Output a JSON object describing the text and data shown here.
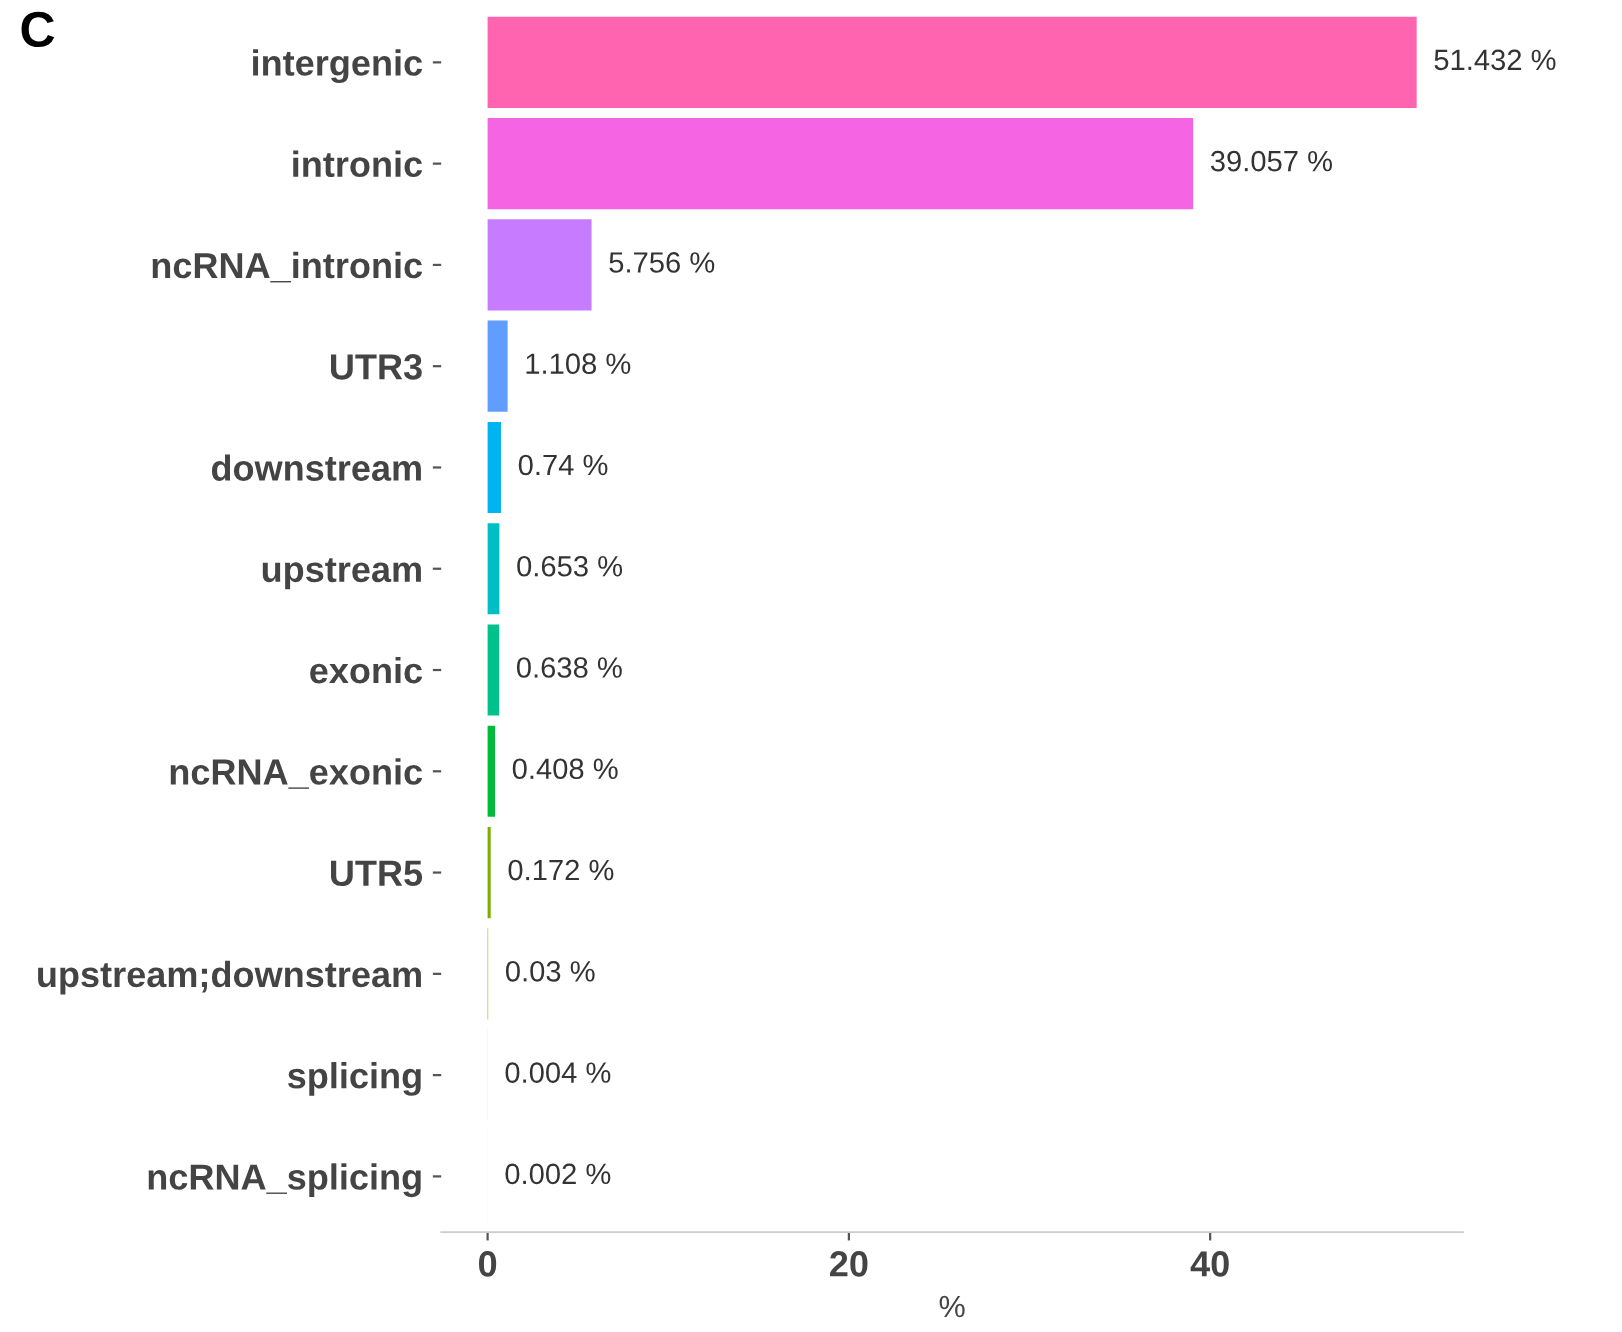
{
  "chart_data": {
    "type": "bar",
    "orientation": "horizontal",
    "title": "C",
    "xlabel": "%",
    "categories": [
      "intergenic",
      "intronic",
      "ncRNA_intronic",
      "UTR3",
      "downstream",
      "upstream",
      "exonic",
      "ncRNA_exonic",
      "UTR5",
      "upstream;downstream",
      "splicing",
      "ncRNA_splicing"
    ],
    "values": [
      51.432,
      39.057,
      5.756,
      1.108,
      0.74,
      0.653,
      0.638,
      0.408,
      0.172,
      0.03,
      0.004,
      0.002
    ],
    "colors": [
      "#ff64b0",
      "#f564e3",
      "#c77cff",
      "#619cff",
      "#00b4f0",
      "#00bfc4",
      "#00c08b",
      "#00ba38",
      "#7cae00",
      "#b79f00",
      "#de8c00",
      "#f8766d"
    ],
    "value_labels": [
      "51.432 %",
      "39.057 %",
      "5.756 %",
      "1.108 %",
      "0.74 %",
      "0.653 %",
      "0.638 %",
      "0.408 %",
      "0.172 %",
      "0.03 %",
      "0.004 %",
      "0.002 %"
    ],
    "xlim": [
      -2.57,
      54.0
    ],
    "xticks": [
      0,
      20,
      40
    ],
    "grid": false,
    "legend": false
  }
}
